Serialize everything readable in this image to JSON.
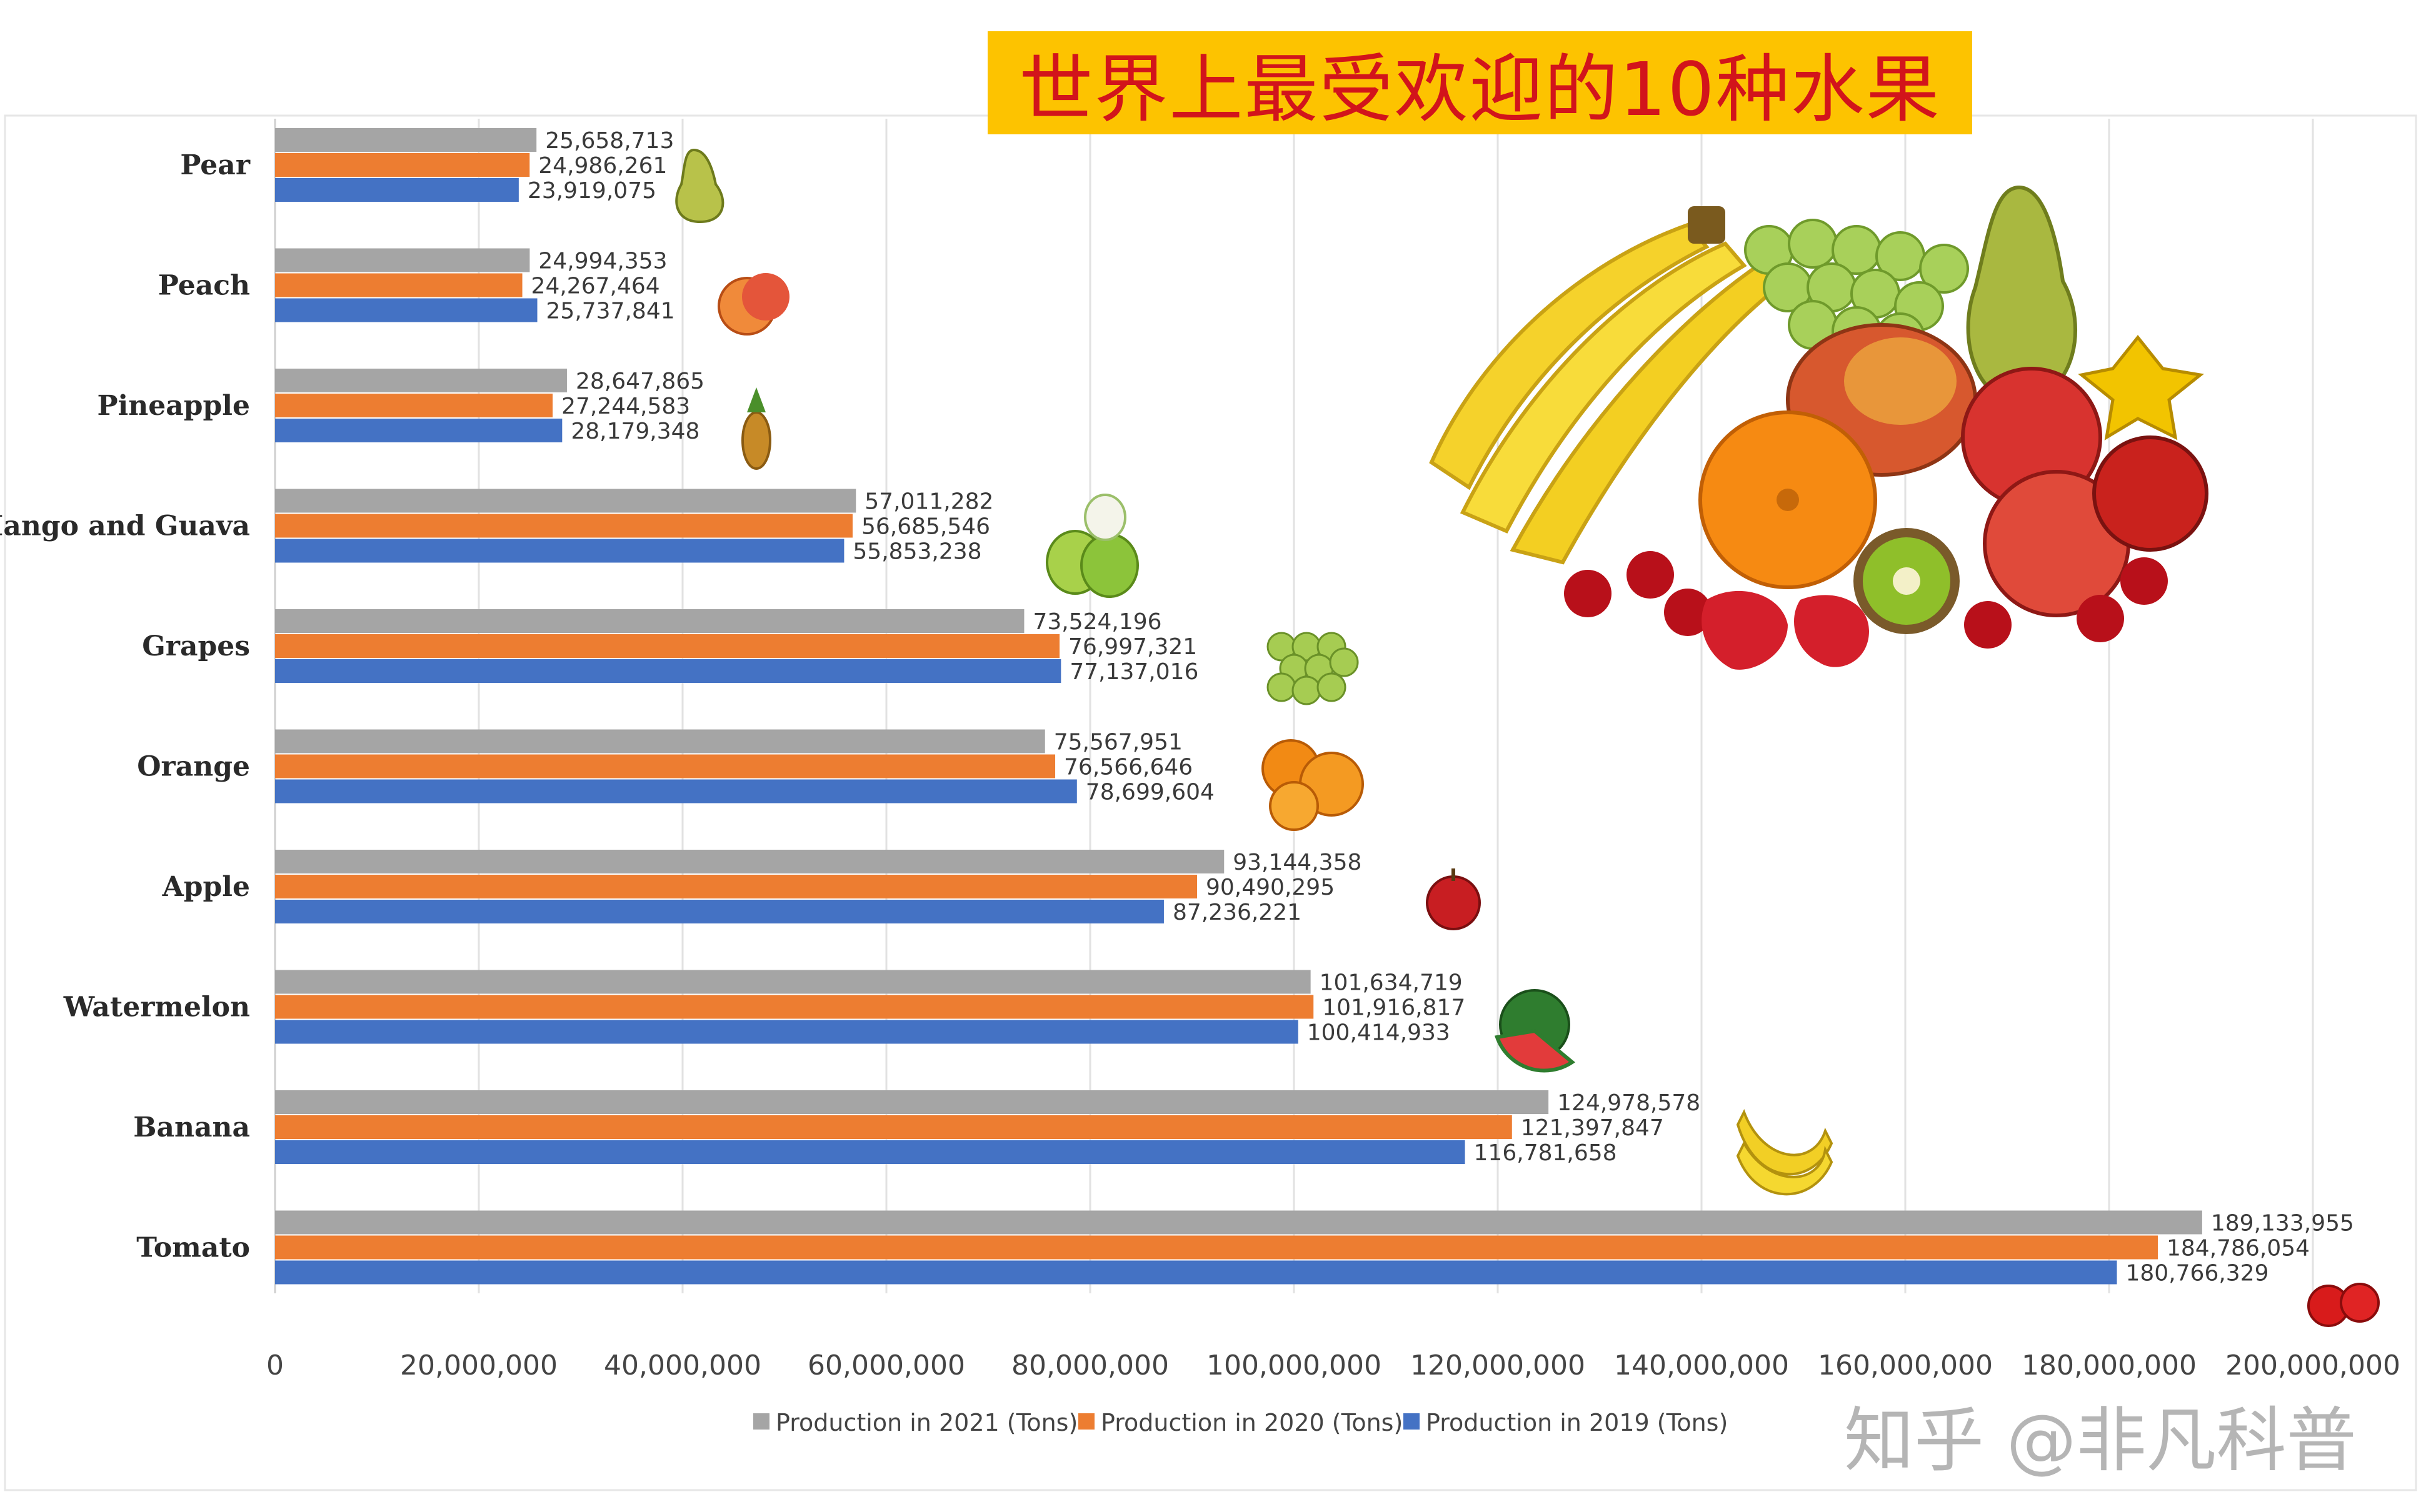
{
  "title": "世界上最受欢迎的10种水果",
  "watermark": "知乎 @非凡科普",
  "colors": {
    "2021": "#a5a5a5",
    "2020": "#ed7d31",
    "2019": "#4472c4",
    "title_bg": "#fdc300",
    "title_text": "#d2141b"
  },
  "chart_data": {
    "type": "bar",
    "orientation": "horizontal",
    "categories": [
      "Pear",
      "Peach",
      "Pineapple",
      "Mango and Guava",
      "Grapes",
      "Orange",
      "Apple",
      "Watermelon",
      "Banana",
      "Tomato"
    ],
    "series": [
      {
        "name": "Production in 2021 (Tons)",
        "values": [
          25658713,
          24994353,
          28647865,
          57011282,
          73524196,
          75567951,
          93144358,
          101634719,
          124978578,
          189133955
        ],
        "labels": [
          "25,658,713",
          "24,994,353",
          "28,647,865",
          "57,011,282",
          "73,524,196",
          "75,567,951",
          "93,144,358",
          "101,634,719",
          "124,978,578",
          "189,133,955"
        ]
      },
      {
        "name": "Production in 2020 (Tons)",
        "values": [
          24986261,
          24267464,
          27244583,
          56685546,
          76997321,
          76566646,
          90490295,
          101916817,
          121397847,
          184786054
        ],
        "labels": [
          "24,986,261",
          "24,267,464",
          "27,244,583",
          "56,685,546",
          "76,997,321",
          "76,566,646",
          "90,490,295",
          "101,916,817",
          "121,397,847",
          "184,786,054"
        ]
      },
      {
        "name": "Production in 2019 (Tons)",
        "values": [
          23919075,
          25737841,
          28179348,
          55853238,
          77137016,
          78699604,
          87236221,
          100414933,
          116781658,
          180766329
        ],
        "labels": [
          "23,919,075",
          "25,737,841",
          "28,179,348",
          "55,853,238",
          "77,137,016",
          "78,699,604",
          "87,236,221",
          "100,414,933",
          "116,781,658",
          "180,766,329"
        ]
      }
    ],
    "xlim": [
      0,
      200000000
    ],
    "xticks": [
      0,
      20000000,
      40000000,
      60000000,
      80000000,
      100000000,
      120000000,
      140000000,
      160000000,
      180000000,
      200000000
    ],
    "xtick_labels": [
      "0",
      "20,000,000",
      "40,000,000",
      "60,000,000",
      "80,000,000",
      "100,000,000",
      "120,000,000",
      "140,000,000",
      "160,000,000",
      "180,000,000",
      "200,000,000"
    ],
    "grid": true,
    "legend_position": "bottom"
  },
  "icons": [
    "pear-icon",
    "peach-icon",
    "pineapple-icon",
    "mango-guava-icon",
    "grapes-icon",
    "orange-icon",
    "apple-icon",
    "watermelon-icon",
    "banana-icon",
    "tomato-icon"
  ]
}
